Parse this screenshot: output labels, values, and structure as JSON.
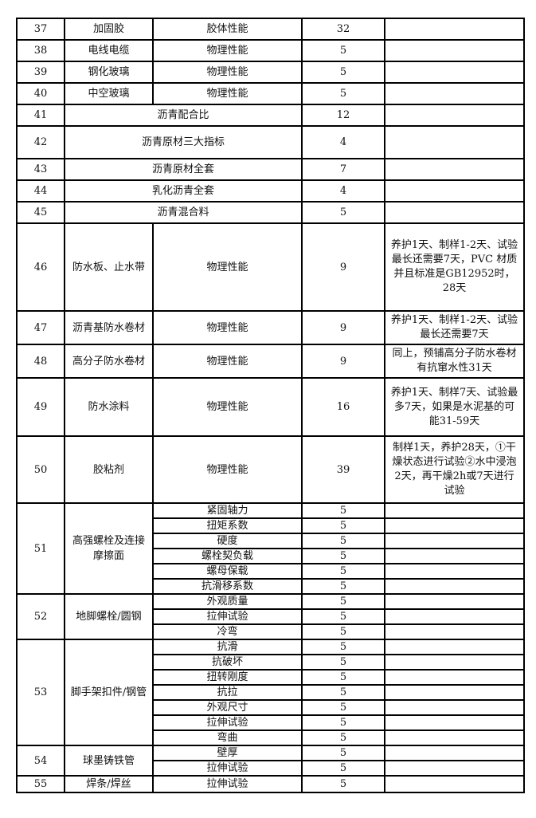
{
  "rows": [
    {
      "no": "37",
      "item": "加固胶",
      "tests": [
        "胶体性能"
      ],
      "counts": [
        "32"
      ],
      "note": ""
    },
    {
      "no": "38",
      "item": "电线电缆",
      "tests": [
        "物理性能"
      ],
      "counts": [
        "5"
      ],
      "note": ""
    },
    {
      "no": "39",
      "item": "钢化玻璃",
      "tests": [
        "物理性能"
      ],
      "counts": [
        "5"
      ],
      "note": ""
    },
    {
      "no": "40",
      "item": "中空玻璃",
      "tests": [
        "物理性能"
      ],
      "counts": [
        "5"
      ],
      "note": ""
    },
    {
      "no": "41",
      "merged": "沥青配合比",
      "counts": [
        "12"
      ],
      "note": ""
    },
    {
      "no": "42",
      "merged": "沥青原材三大指标",
      "counts": [
        "4"
      ],
      "note": ""
    },
    {
      "no": "43",
      "merged": "沥青原材全套",
      "counts": [
        "7"
      ],
      "note": ""
    },
    {
      "no": "44",
      "merged": "乳化沥青全套",
      "counts": [
        "4"
      ],
      "note": ""
    },
    {
      "no": "45",
      "merged": "沥青混合料",
      "counts": [
        "5"
      ],
      "note": ""
    },
    {
      "no": "46",
      "item": "防水板、止水带",
      "tests": [
        "物理性能"
      ],
      "counts": [
        "9"
      ],
      "note": "养护1天、制样1-2天、试验最长还需要7天，PVC 材质并且标准是GB12952时，28天"
    },
    {
      "no": "47",
      "item": "沥青基防水卷材",
      "tests": [
        "物理性能"
      ],
      "counts": [
        "9"
      ],
      "note": "养护1天、制样1-2天、试验最长还需要7天"
    },
    {
      "no": "48",
      "item": "高分子防水卷材",
      "tests": [
        "物理性能"
      ],
      "counts": [
        "9"
      ],
      "note": "同上，预铺高分子防水卷材有抗窜水性31天"
    },
    {
      "no": "49",
      "item": "防水涂料",
      "tests": [
        "物理性能"
      ],
      "counts": [
        "16"
      ],
      "note": "养护1天、制样7天、试验最多7天，如果是水泥基的可能31-59天"
    },
    {
      "no": "50",
      "item": "胶粘剂",
      "tests": [
        "物理性能"
      ],
      "counts": [
        "39"
      ],
      "note": "制样1天，养护28天，①干燥状态进行试验②水中浸泡2天，再干燥2h或7天进行试验"
    },
    {
      "no": "51",
      "item": "高强螺栓及连接摩擦面",
      "tests": [
        "紧固轴力",
        "扭矩系数",
        "硬度",
        "螺栓契负载",
        "螺母保载",
        "抗滑移系数"
      ],
      "counts": [
        "5",
        "5",
        "5",
        "5",
        "5",
        "5"
      ],
      "note": ""
    },
    {
      "no": "52",
      "item": "地脚螺栓/圆钢",
      "tests": [
        "外观质量",
        "拉伸试验",
        "冷弯"
      ],
      "counts": [
        "5",
        "5",
        "5"
      ],
      "note": ""
    },
    {
      "no": "53",
      "item": "脚手架扣件/钢管",
      "tests": [
        "抗滑",
        "抗破坏",
        "扭转刚度",
        "抗拉",
        "外观尺寸",
        "拉伸试验",
        "弯曲"
      ],
      "counts": [
        "5",
        "5",
        "5",
        "5",
        "5",
        "5",
        "5"
      ],
      "note": ""
    },
    {
      "no": "54",
      "item": "球墨铸铁管",
      "tests": [
        "壁厚",
        "拉伸试验"
      ],
      "counts": [
        "5",
        "5"
      ],
      "note": ""
    },
    {
      "no": "55",
      "item": "焊条/焊丝",
      "tests": [
        "拉伸试验"
      ],
      "counts": [
        "5"
      ],
      "note": ""
    }
  ]
}
